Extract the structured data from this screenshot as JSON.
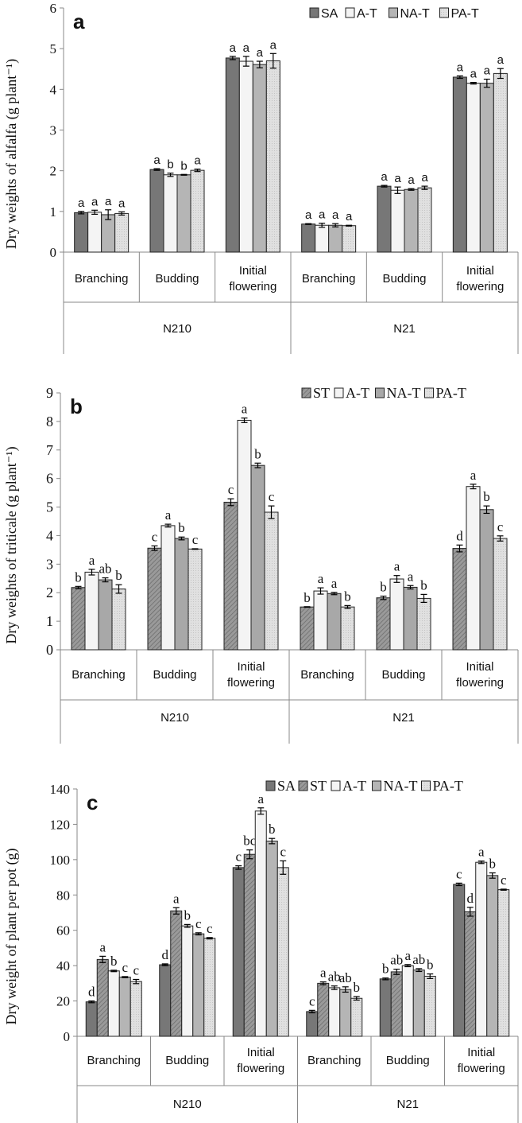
{
  "chart_data": [
    {
      "type": "bar",
      "panel_label": "a",
      "ylabel": "Dry weights of alfalfa (g plant⁻¹)",
      "ylim": [
        0,
        6
      ],
      "yticks": [
        0,
        1,
        2,
        3,
        4,
        5,
        6
      ],
      "groups": [
        "N210",
        "N21"
      ],
      "categories": [
        "Branching",
        "Budding",
        "Initial flowering",
        "Branching",
        "Budding",
        "Initial flowering"
      ],
      "category_group": [
        0,
        0,
        0,
        1,
        1,
        1
      ],
      "legend_position": "top-right",
      "series": [
        {
          "name": "SA",
          "color": "#777777",
          "pattern": "solid",
          "values": [
            0.97,
            2.03,
            4.77,
            0.69,
            1.62,
            4.3
          ],
          "errors": [
            0.03,
            0.02,
            0.04,
            0.01,
            0.02,
            0.03
          ],
          "letters": [
            "a",
            "a",
            "a",
            "a",
            "a",
            "a"
          ]
        },
        {
          "name": "A-T",
          "color": "#f4f4f4",
          "pattern": "solid",
          "values": [
            0.98,
            1.9,
            4.69,
            0.66,
            1.52,
            4.15
          ],
          "errors": [
            0.05,
            0.04,
            0.12,
            0.05,
            0.08,
            0.02
          ],
          "letters": [
            "a",
            "b",
            "a",
            "a",
            "a",
            "a"
          ]
        },
        {
          "name": "NA-T",
          "color": "#b5b5b5",
          "pattern": "solid",
          "values": [
            0.92,
            1.9,
            4.61,
            0.66,
            1.54,
            4.15
          ],
          "errors": [
            0.12,
            0.01,
            0.08,
            0.04,
            0.02,
            0.1
          ],
          "letters": [
            "a",
            "b",
            "a",
            "a",
            "a",
            "a"
          ]
        },
        {
          "name": "PA-T",
          "color": "#dddddd",
          "pattern": "dots",
          "values": [
            0.95,
            2.01,
            4.7,
            0.65,
            1.58,
            4.39
          ],
          "errors": [
            0.04,
            0.03,
            0.18,
            0.01,
            0.04,
            0.12
          ],
          "letters": [
            "a",
            "a",
            "a",
            "a",
            "a",
            "a"
          ]
        }
      ]
    },
    {
      "type": "bar",
      "panel_label": "b",
      "ylabel": "Dry weights of triticale (g plant⁻¹)",
      "ylim": [
        0,
        9
      ],
      "yticks": [
        0,
        1,
        2,
        3,
        4,
        5,
        6,
        7,
        8,
        9
      ],
      "groups": [
        "N210",
        "N21"
      ],
      "categories": [
        "Branching",
        "Budding",
        "Initial flowering",
        "Branching",
        "Budding",
        "Initial flowering"
      ],
      "category_group": [
        0,
        0,
        0,
        1,
        1,
        1
      ],
      "legend_position": "top-right",
      "series": [
        {
          "name": "ST",
          "color": "#8f8f8f",
          "pattern": "hatch",
          "values": [
            2.18,
            3.56,
            5.17,
            1.5,
            1.82,
            3.55
          ],
          "errors": [
            0.04,
            0.08,
            0.12,
            0.01,
            0.06,
            0.12
          ],
          "letters": [
            "b",
            "c",
            "c",
            "b",
            "b",
            "d"
          ]
        },
        {
          "name": "A-T",
          "color": "#f4f4f4",
          "pattern": "solid",
          "values": [
            2.72,
            4.35,
            8.04,
            2.06,
            2.48,
            5.72
          ],
          "errors": [
            0.1,
            0.05,
            0.08,
            0.11,
            0.12,
            0.08
          ],
          "letters": [
            "a",
            "a",
            "a",
            "a",
            "a",
            "a"
          ]
        },
        {
          "name": "NA-T",
          "color": "#a8a8a8",
          "pattern": "solid",
          "values": [
            2.45,
            3.9,
            6.46,
            1.97,
            2.19,
            4.91
          ],
          "errors": [
            0.07,
            0.05,
            0.08,
            0.04,
            0.06,
            0.13
          ],
          "letters": [
            "ab",
            "b",
            "b",
            "a",
            "a",
            "b"
          ]
        },
        {
          "name": "PA-T",
          "color": "#dddddd",
          "pattern": "dots",
          "values": [
            2.13,
            3.53,
            4.82,
            1.5,
            1.8,
            3.9
          ],
          "errors": [
            0.15,
            0.01,
            0.22,
            0.05,
            0.14,
            0.09
          ],
          "letters": [
            "b",
            "c",
            "c",
            "b",
            "b",
            "c"
          ]
        }
      ]
    },
    {
      "type": "bar",
      "panel_label": "c",
      "ylabel": "Dry weight of plant per pot (g)",
      "ylim": [
        0,
        140
      ],
      "yticks": [
        0,
        20,
        40,
        60,
        80,
        100,
        120,
        140
      ],
      "groups": [
        "N210",
        "N21"
      ],
      "categories": [
        "Branching",
        "Budding",
        "Initial flowering",
        "Branching",
        "Budding",
        "Initial flowering"
      ],
      "category_group": [
        0,
        0,
        0,
        1,
        1,
        1
      ],
      "legend_position": "top-right",
      "series": [
        {
          "name": "SA",
          "color": "#777777",
          "pattern": "solid",
          "values": [
            19.5,
            40.5,
            95.5,
            14.0,
            32.5,
            86.0
          ],
          "errors": [
            0.5,
            0.5,
            1.0,
            0.7,
            0.5,
            0.7
          ],
          "letters": [
            "d",
            "d",
            "c",
            "c",
            "b",
            "c"
          ]
        },
        {
          "name": "ST",
          "color": "#8f8f8f",
          "pattern": "hatch",
          "values": [
            43.5,
            71.0,
            103.0,
            30.0,
            36.5,
            70.5
          ],
          "errors": [
            1.8,
            1.8,
            2.5,
            0.8,
            1.5,
            2.5
          ],
          "letters": [
            "a",
            "a",
            "bc",
            "a",
            "ab",
            "d"
          ]
        },
        {
          "name": "A-T",
          "color": "#f4f4f4",
          "pattern": "solid",
          "values": [
            37.0,
            62.5,
            127.5,
            27.5,
            40.0,
            98.5
          ],
          "errors": [
            0.4,
            0.8,
            1.8,
            1.0,
            0.6,
            0.7
          ],
          "letters": [
            "b",
            "b",
            "a",
            "ab",
            "a",
            "a"
          ]
        },
        {
          "name": "NA-T",
          "color": "#b5b5b5",
          "pattern": "solid",
          "values": [
            33.5,
            58.0,
            110.5,
            26.5,
            37.5,
            91.0
          ],
          "errors": [
            0.3,
            0.6,
            1.5,
            1.5,
            0.8,
            1.5
          ],
          "letters": [
            "c",
            "c",
            "b",
            "ab",
            "ab",
            "b"
          ]
        },
        {
          "name": "PA-T",
          "color": "#dddddd",
          "pattern": "dots",
          "values": [
            31.0,
            55.5,
            95.5,
            21.5,
            34.0,
            83.0
          ],
          "errors": [
            1.2,
            0.4,
            3.8,
            1.0,
            1.3,
            0.3
          ],
          "letters": [
            "c",
            "c",
            "c",
            "b",
            "b",
            "c"
          ]
        }
      ]
    }
  ]
}
